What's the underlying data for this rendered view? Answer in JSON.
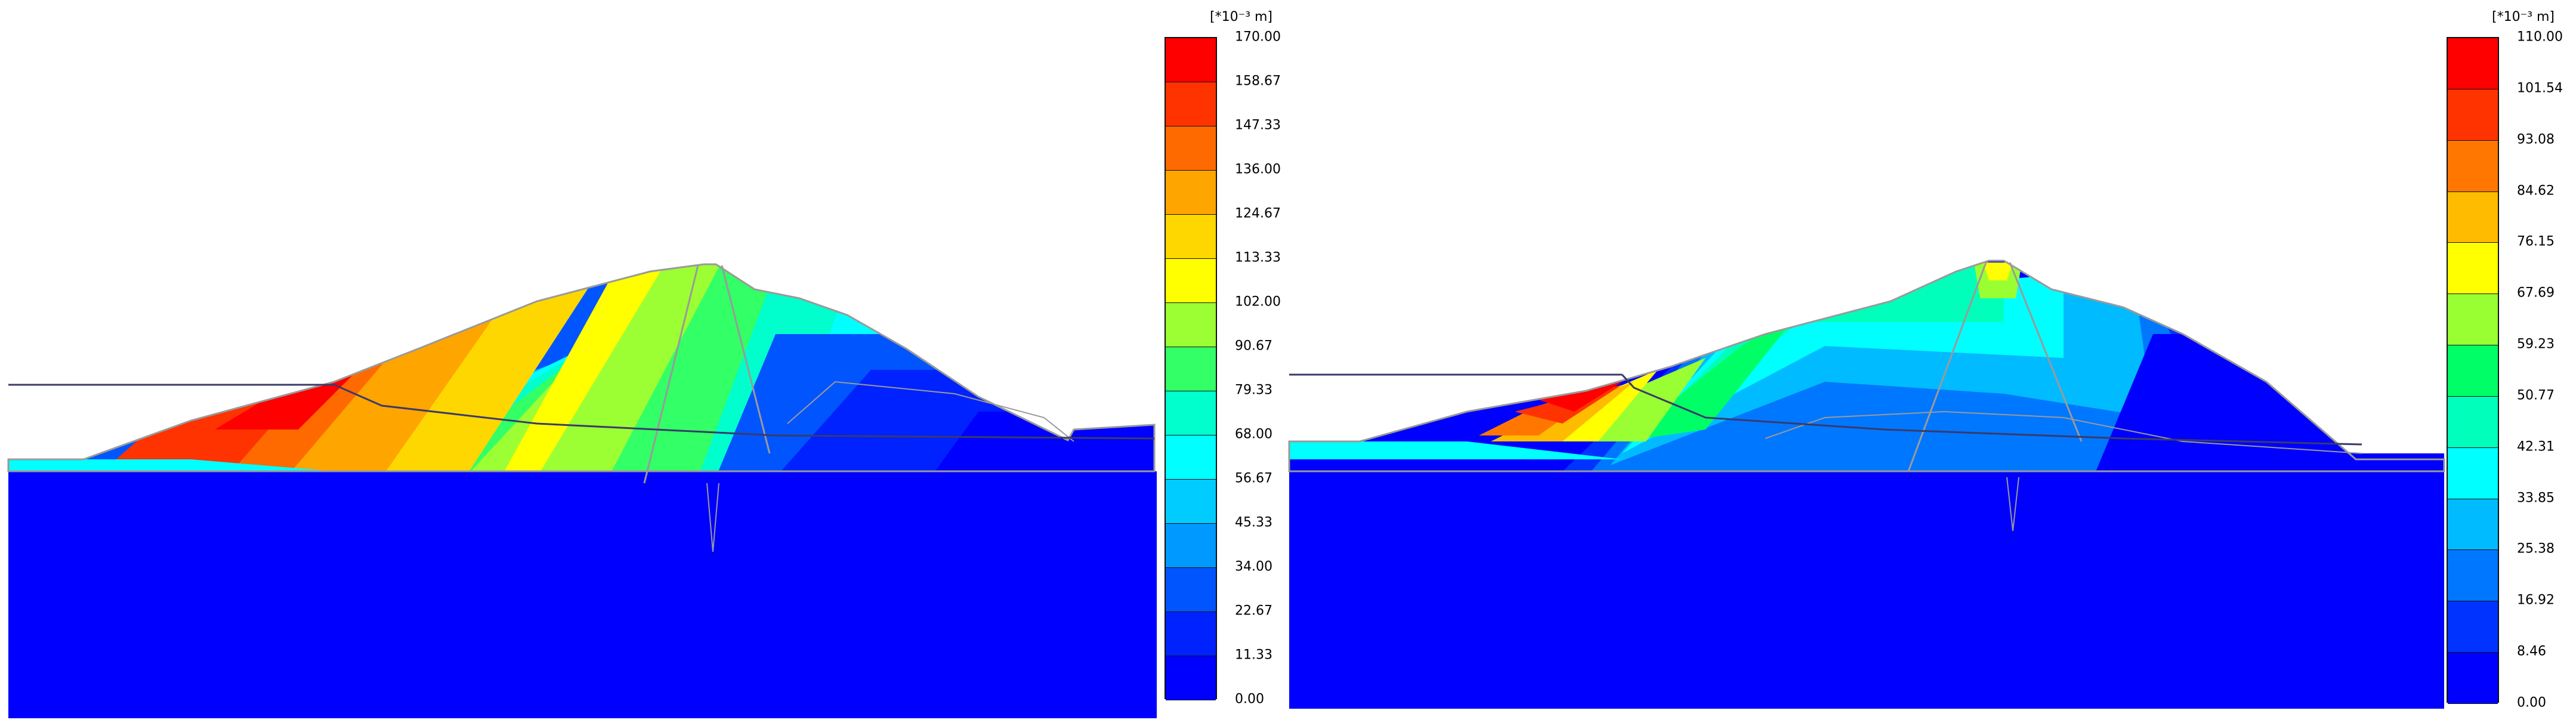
{
  "panels": [
    {
      "id": "left",
      "legend": {
        "unit_label": "[*10⁻³ m]",
        "ticks": [
          "170.00",
          "158.67",
          "147.33",
          "136.00",
          "124.67",
          "113.33",
          "102.00",
          "90.67",
          "79.33",
          "68.00",
          "56.67",
          "45.33",
          "34.00",
          "22.67",
          "11.33",
          "0.00"
        ]
      },
      "section": {
        "crest_relative_height": 0.36,
        "water_level_relative_height": 0.64
      }
    },
    {
      "id": "right",
      "legend": {
        "unit_label": "[*10⁻³ m]",
        "ticks": [
          "110.00",
          "101.54",
          "93.08",
          "84.62",
          "76.15",
          "67.69",
          "59.23",
          "50.77",
          "42.31",
          "33.85",
          "25.38",
          "16.92",
          "8.46",
          "0.00"
        ]
      },
      "section": {
        "crest_relative_height": 0.36,
        "water_level_relative_height": 0.62
      }
    }
  ],
  "colors": {
    "scale_15": [
      "#ff0000",
      "#ff3300",
      "#ff6a00",
      "#ffa500",
      "#ffd700",
      "#ffff00",
      "#9cff33",
      "#33ff66",
      "#00ffcc",
      "#00ffff",
      "#00ccff",
      "#0099ff",
      "#0055ff",
      "#0022ff",
      "#0000ff"
    ],
    "scale_13": [
      "#ff0000",
      "#ff3300",
      "#ff7700",
      "#ffbb00",
      "#ffff00",
      "#99ff33",
      "#00ff66",
      "#00ffbb",
      "#00ffff",
      "#00bbff",
      "#0077ff",
      "#0033ff",
      "#0000ff"
    ],
    "foundation": "#0000ff",
    "outline": "#9a9a9a",
    "water_line": "#3a3a6a"
  }
}
